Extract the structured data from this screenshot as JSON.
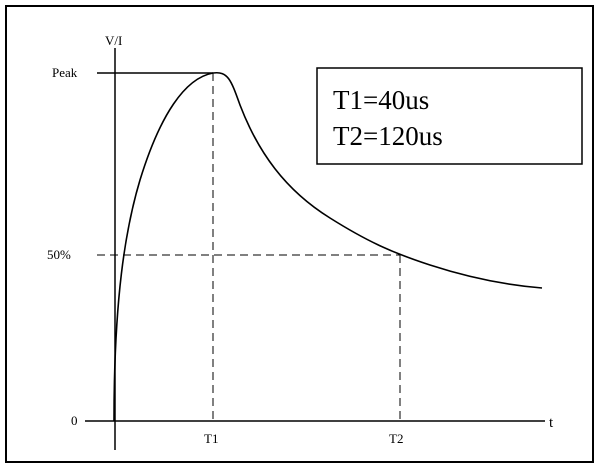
{
  "diagram": {
    "y_axis_label": "V/I",
    "x_axis_label": "t",
    "y_levels": {
      "peak": "Peak",
      "half": "50%",
      "zero": "0"
    },
    "x_markers": {
      "t1": "T1",
      "t2": "T2"
    },
    "parameters": {
      "line1": "T1=40us",
      "line2": "T2=120us"
    }
  }
}
